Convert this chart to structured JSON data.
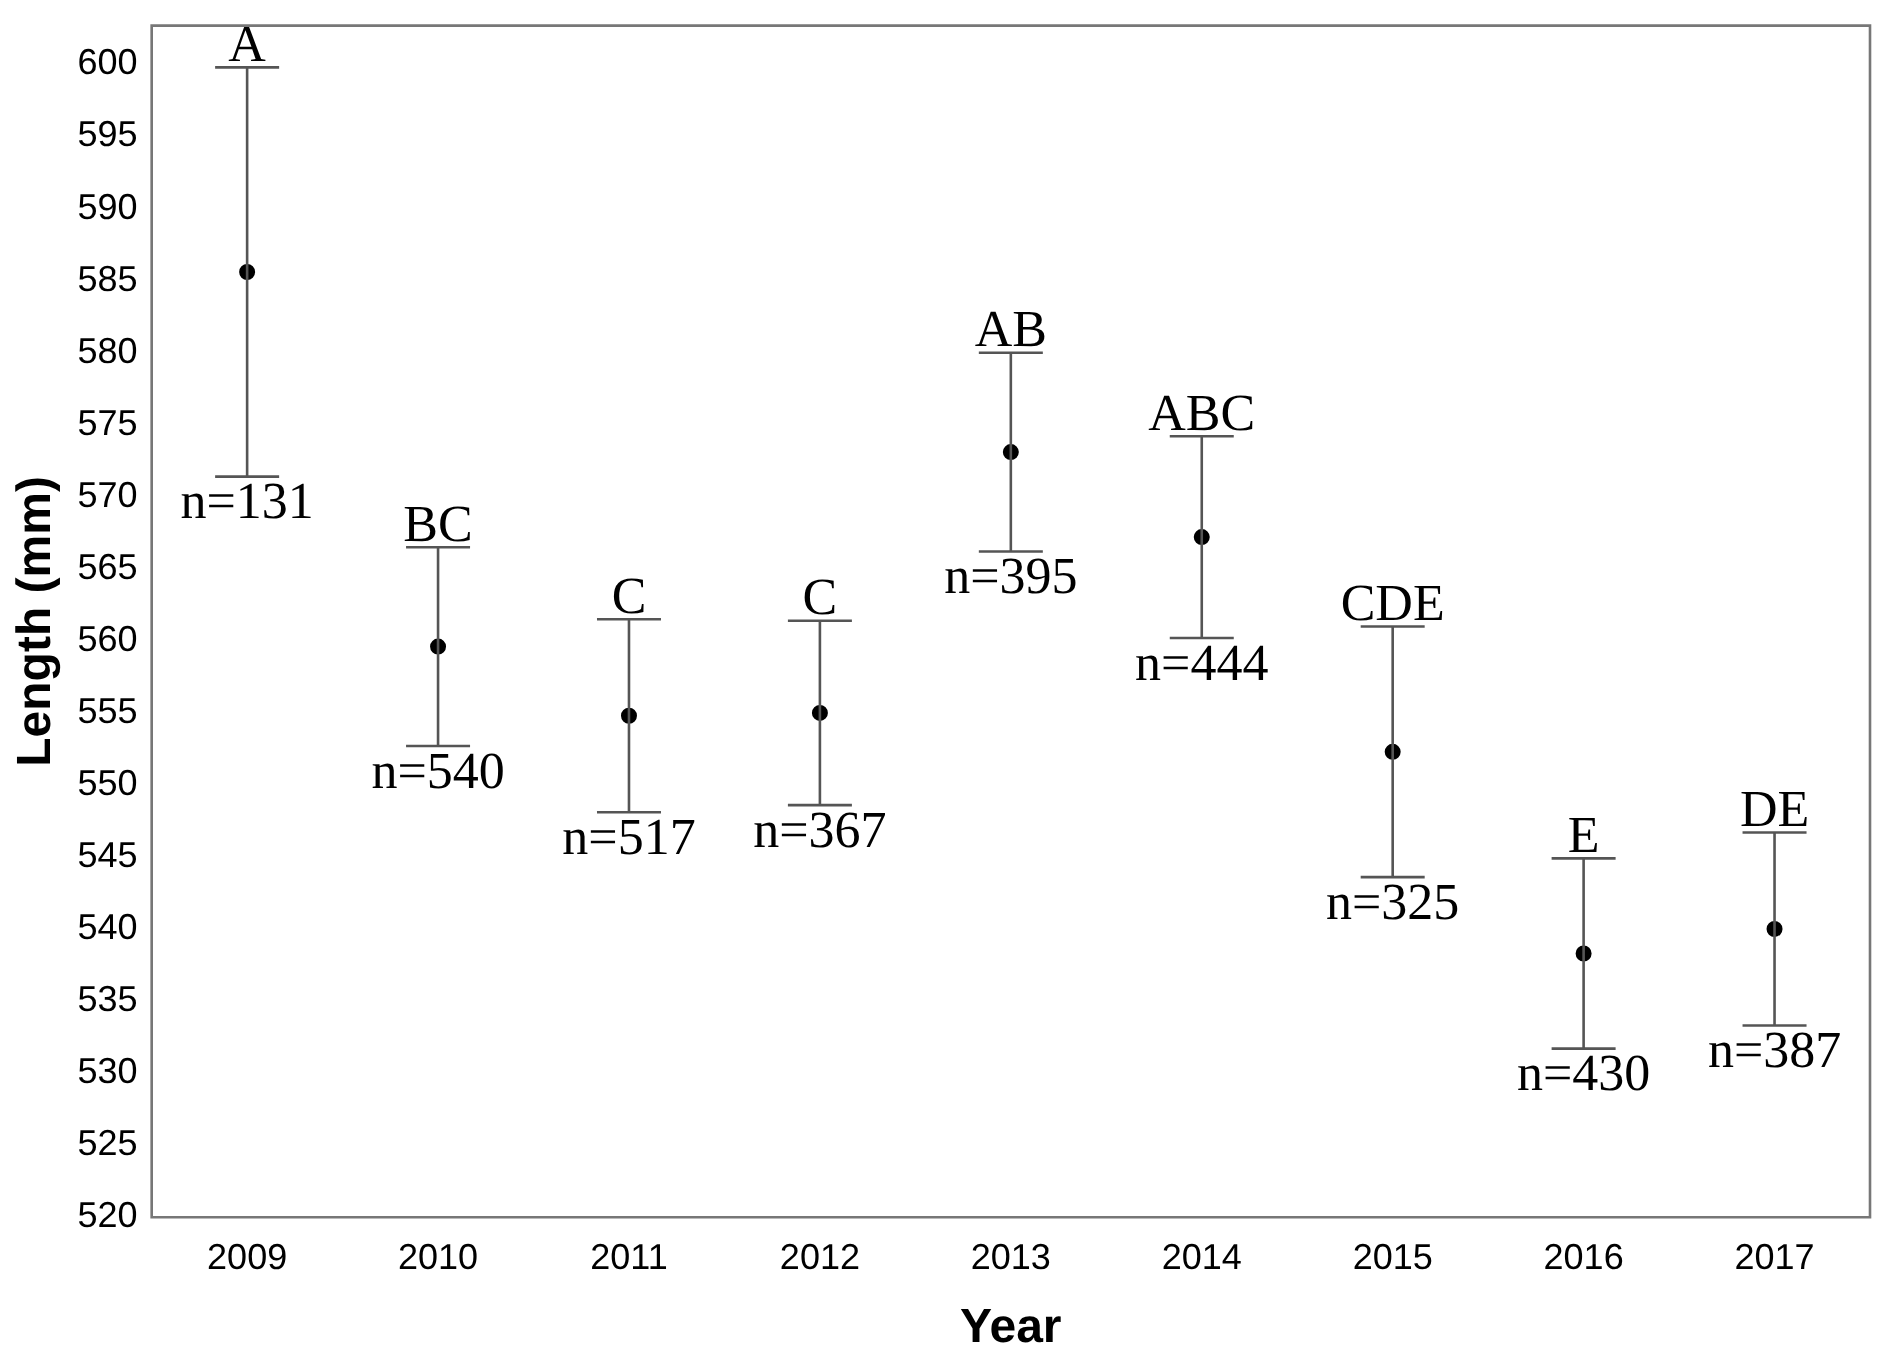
{
  "chart_data": {
    "type": "scatter",
    "xlabel": "Year",
    "ylabel": "Length (mm)",
    "categories": [
      "2009",
      "2010",
      "2011",
      "2012",
      "2013",
      "2014",
      "2015",
      "2016",
      "2017"
    ],
    "values": [
      585.6,
      559.6,
      554.8,
      555.0,
      573.1,
      567.2,
      552.3,
      538.3,
      540.0
    ],
    "errors": [
      14.2,
      6.9,
      6.7,
      6.4,
      6.9,
      7.0,
      8.7,
      6.6,
      6.7
    ],
    "color": "#000000",
    "marker": "circle",
    "grid": false,
    "legend": false,
    "ylim": [
      520,
      602.7
    ],
    "yticks": [
      520,
      525,
      530,
      535,
      540,
      545,
      550,
      555,
      560,
      565,
      570,
      575,
      580,
      585,
      590,
      595,
      600
    ],
    "annotations": [
      {
        "text": "A",
        "x": "2009",
        "y": 599.8
      },
      {
        "text": "n=131",
        "x": "2009",
        "y": 571.4
      },
      {
        "text": "BC",
        "x": "2010",
        "y": 566.5
      },
      {
        "text": "n=540",
        "x": "2010",
        "y": 552.7
      },
      {
        "text": "C",
        "x": "2011",
        "y": 561.5
      },
      {
        "text": "n=517",
        "x": "2011",
        "y": 548.1
      },
      {
        "text": "C",
        "x": "2012",
        "y": 561.4
      },
      {
        "text": "n=367",
        "x": "2012",
        "y": 548.6
      },
      {
        "text": "AB",
        "x": "2013",
        "y": 580.0
      },
      {
        "text": "n=395",
        "x": "2013",
        "y": 566.2
      },
      {
        "text": "ABC",
        "x": "2014",
        "y": 574.2
      },
      {
        "text": "n=444",
        "x": "2014",
        "y": 560.2
      },
      {
        "text": "CDE",
        "x": "2015",
        "y": 561.0
      },
      {
        "text": "n=325",
        "x": "2015",
        "y": 543.6
      },
      {
        "text": "E",
        "x": "2016",
        "y": 544.9
      },
      {
        "text": "n=430",
        "x": "2016",
        "y": 531.7
      },
      {
        "text": "DE",
        "x": "2017",
        "y": 546.7
      },
      {
        "text": "n=387",
        "x": "2017",
        "y": 533.3
      }
    ]
  }
}
